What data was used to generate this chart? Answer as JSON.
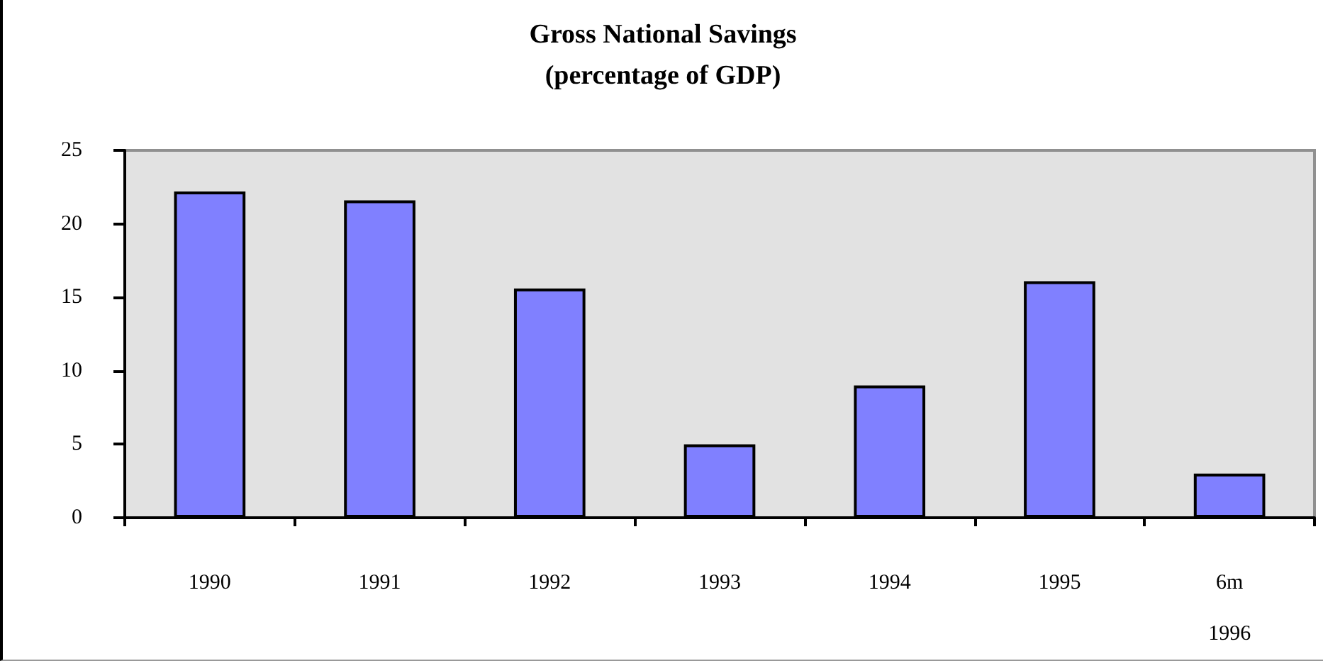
{
  "chart_data": {
    "type": "bar",
    "title": "Gross National Savings",
    "subtitle": "(percentage of GDP)",
    "categories": [
      "1990",
      "1991",
      "1992",
      "1993",
      "1994",
      "1995",
      "6m\n1996"
    ],
    "values": [
      22.2,
      21.6,
      15.6,
      5.0,
      9.0,
      16.1,
      3.0
    ],
    "color": "#8080ff",
    "ylim": [
      0,
      25
    ],
    "yticks": [
      0,
      5,
      10,
      15,
      20,
      25
    ],
    "grid": false
  }
}
